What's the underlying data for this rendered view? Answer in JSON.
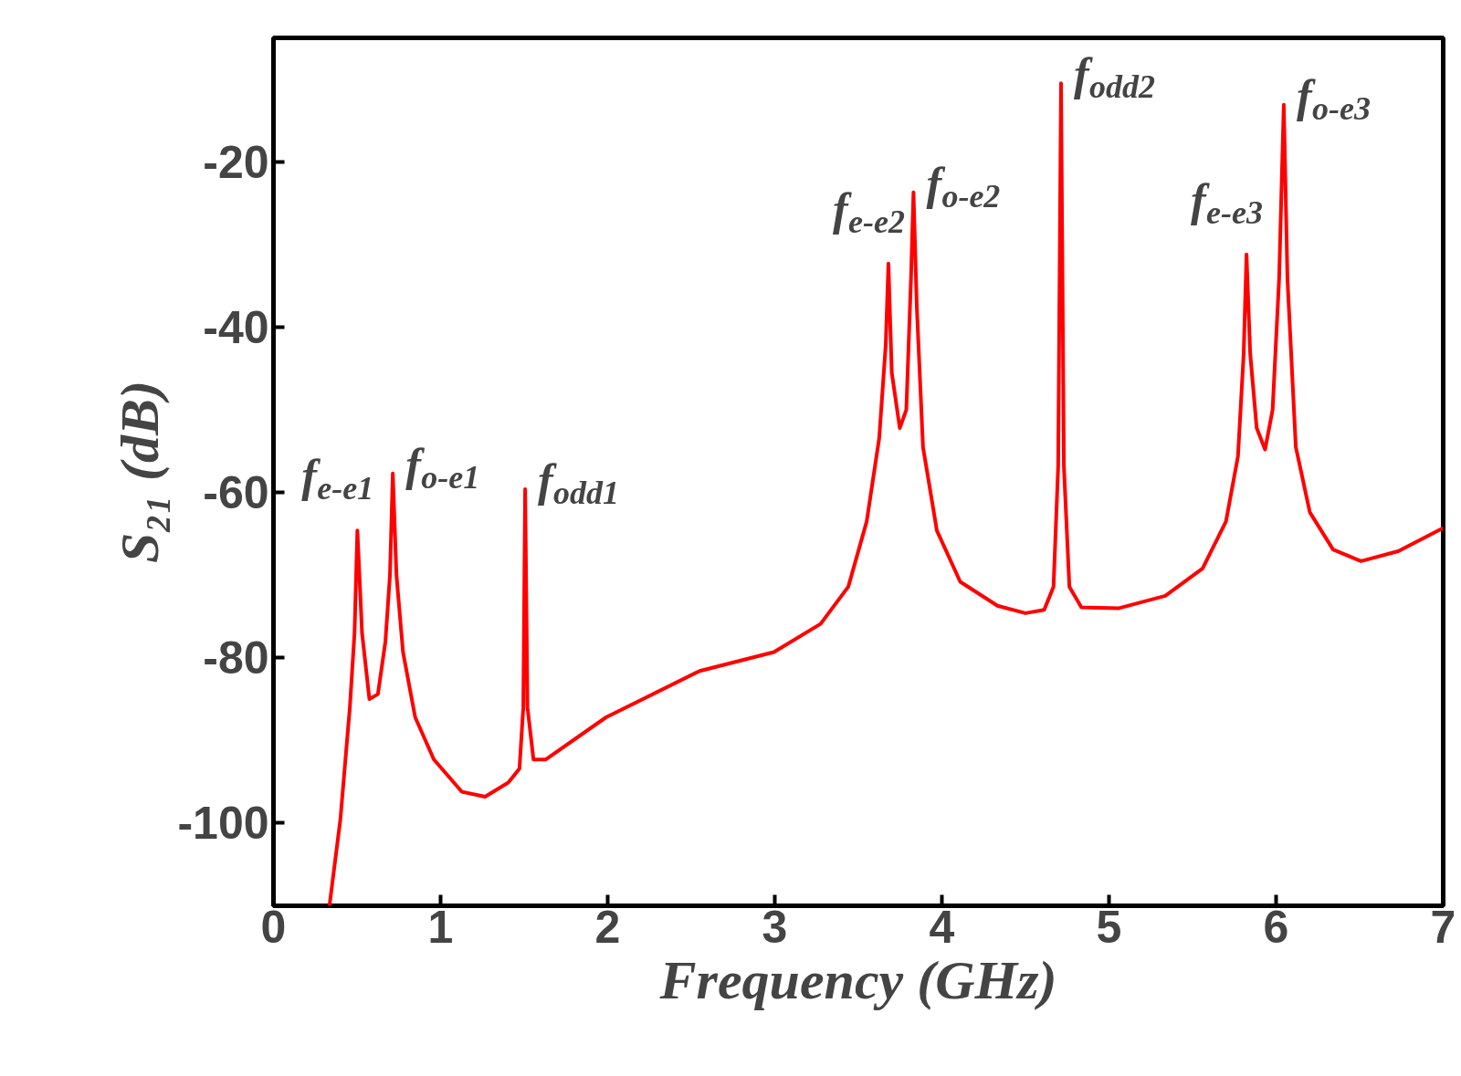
{
  "chart_data": {
    "type": "line",
    "xlabel": "Frequency (GHz)",
    "ylabel": "S₂₁ (dB)",
    "x": [
      0.335,
      0.4,
      0.457,
      0.485,
      0.502,
      0.53,
      0.574,
      0.625,
      0.67,
      0.697,
      0.714,
      0.736,
      0.775,
      0.848,
      0.96,
      1.127,
      1.266,
      1.405,
      1.472,
      1.495,
      1.506,
      1.52,
      1.556,
      1.63,
      1.99,
      2.55,
      2.995,
      3.274,
      3.44,
      3.55,
      3.625,
      3.664,
      3.68,
      3.7,
      3.748,
      3.787,
      3.815,
      3.83,
      3.85,
      3.887,
      3.97,
      4.11,
      4.333,
      4.5,
      4.612,
      4.668,
      4.696,
      4.713,
      4.73,
      4.763,
      4.835,
      5.06,
      5.337,
      5.56,
      5.7,
      5.772,
      5.806,
      5.823,
      5.845,
      5.884,
      5.934,
      5.979,
      6.018,
      6.046,
      6.068,
      6.118,
      6.202,
      6.341,
      6.508,
      6.731,
      7.0
    ],
    "series": [
      {
        "color": "#ff0000",
        "values": [
          -110,
          -99.6,
          -86,
          -77,
          -64.6,
          -77,
          -85,
          -84.4,
          -78,
          -70,
          -57.7,
          -70,
          -79.3,
          -87.2,
          -92.3,
          -96.2,
          -96.8,
          -95.1,
          -93.4,
          -86,
          -59.6,
          -86,
          -92.3,
          -92.3,
          -87.2,
          -81.6,
          -79.3,
          -75.9,
          -71.4,
          -63.5,
          -53.4,
          -42.1,
          -32.3,
          -45.5,
          -52.2,
          -50,
          -34.2,
          -23.7,
          -37.6,
          -54.5,
          -64.6,
          -70.8,
          -73.7,
          -74.6,
          -74.2,
          -71.4,
          -56.8,
          -10.5,
          -56.8,
          -71.4,
          -73.9,
          -74,
          -72.5,
          -69.2,
          -63.5,
          -55.6,
          -43.2,
          -31.2,
          -43.2,
          -52.2,
          -54.8,
          -50,
          -34.2,
          -13.1,
          -34.2,
          -54.5,
          -62.4,
          -66.9,
          -68.3,
          -67.1,
          -64.3
        ]
      }
    ],
    "xlim": [
      0,
      7
    ],
    "ylim": [
      -110,
      -5
    ],
    "xticks": [
      0,
      1,
      2,
      3,
      4,
      5,
      6,
      7
    ],
    "yticks": [
      -20,
      -40,
      -60,
      -80,
      -100
    ],
    "grid": false,
    "marker": "none",
    "line_style": "solid",
    "annotations": [
      {
        "text": "f$_{e-e1}$",
        "x": 0.502,
        "y": -64.6
      },
      {
        "text": "f$_{o-e1}$",
        "x": 0.714,
        "y": -57.7
      },
      {
        "text": "f$_{odd1}$",
        "x": 1.506,
        "y": -59.6
      },
      {
        "text": "f$_{e-e2}$",
        "x": 3.68,
        "y": -32.3
      },
      {
        "text": "f$_{o-e2}$",
        "x": 3.83,
        "y": -23.7
      },
      {
        "text": "f$_{odd2}$",
        "x": 4.713,
        "y": -10.5
      },
      {
        "text": "f$_{e-e3}$",
        "x": 5.823,
        "y": -31.2
      },
      {
        "text": "f$_{o-e3}$",
        "x": 6.046,
        "y": -13.1
      }
    ]
  }
}
